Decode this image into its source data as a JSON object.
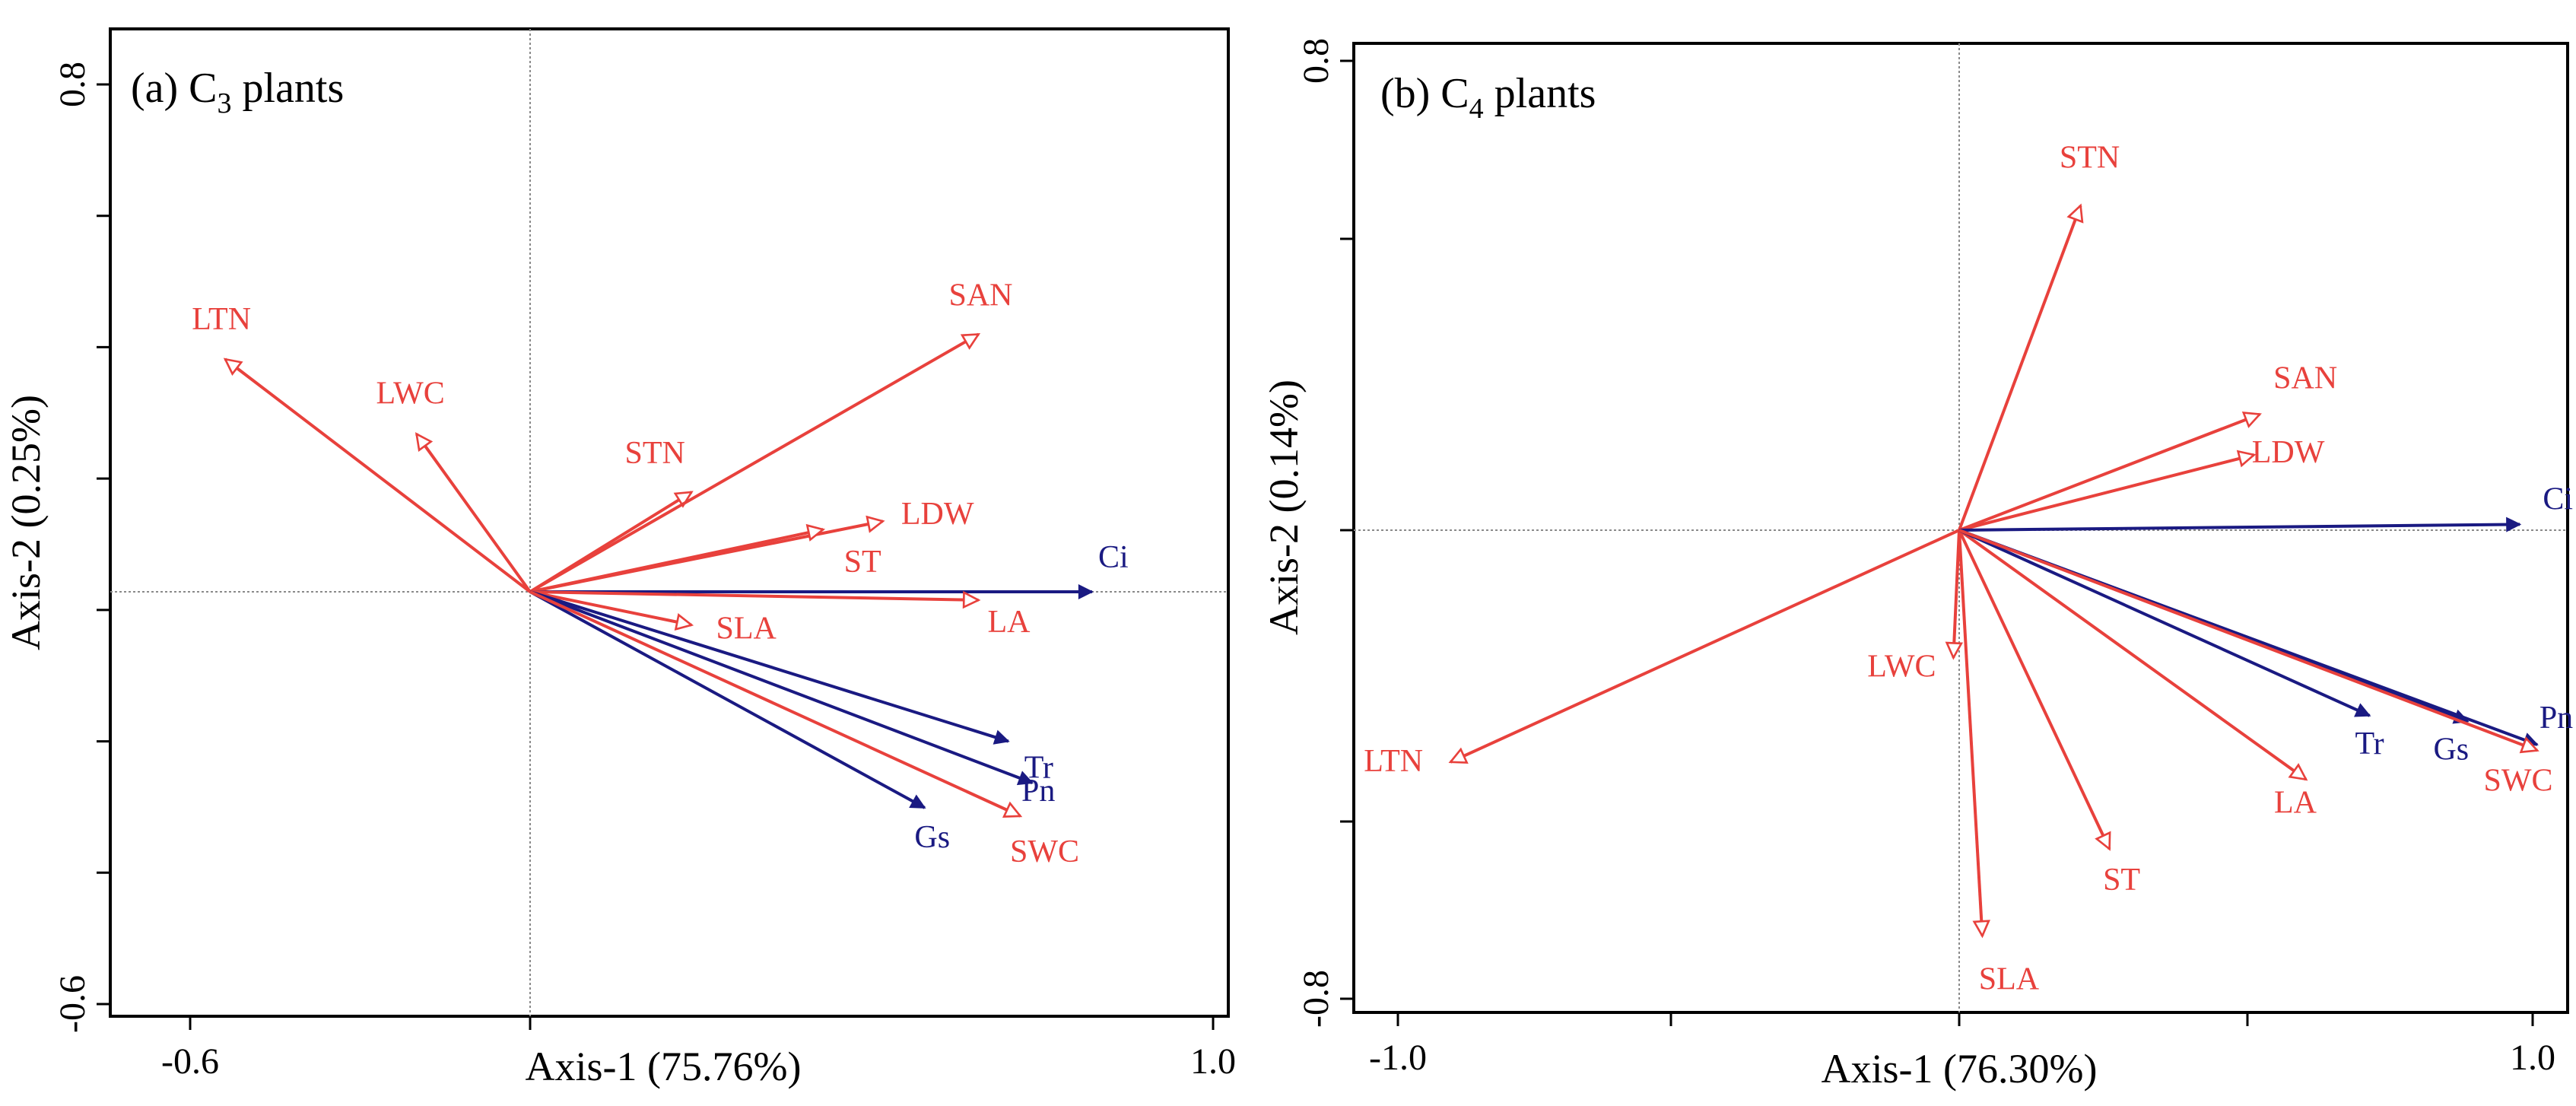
{
  "chart_data": [
    {
      "type": "biplot",
      "panel_label": "(a) C",
      "title_sub": "3",
      "title_suffix": " plants",
      "xlabel": "Axis-1 (75.76%)",
      "ylabel": "Axis-2 (0.25%)",
      "xlim": [
        -0.75,
        1.02
      ],
      "ylim": [
        -0.62,
        0.86
      ],
      "xticks": [
        -0.6,
        1.0
      ],
      "xtick_labels": [
        "-0.6",
        "1.0"
      ],
      "yticks": [
        -0.6,
        0.8
      ],
      "ytick_labels": [
        "-0.6",
        "0.8"
      ],
      "reference_lines": {
        "x": 0,
        "y": 0
      },
      "vectors": [
        {
          "name": "LTN",
          "x": -0.51,
          "y": 0.56,
          "group": "red"
        },
        {
          "name": "LWC",
          "x": -0.19,
          "y": 0.38,
          "group": "red"
        },
        {
          "name": "STN",
          "x": 0.27,
          "y": 0.24,
          "group": "red"
        },
        {
          "name": "SAN",
          "x": 0.75,
          "y": 0.62,
          "group": "red"
        },
        {
          "name": "LDW",
          "x": 0.59,
          "y": 0.17,
          "group": "red"
        },
        {
          "name": "ST",
          "x": 0.49,
          "y": 0.15,
          "group": "red"
        },
        {
          "name": "Ci",
          "x": 0.94,
          "y": 0.0,
          "group": "blue"
        },
        {
          "name": "LA",
          "x": 0.75,
          "y": -0.02,
          "group": "red"
        },
        {
          "name": "SLA",
          "x": 0.27,
          "y": -0.08,
          "group": "red"
        },
        {
          "name": "Tr",
          "x": 0.8,
          "y": -0.36,
          "group": "blue"
        },
        {
          "name": "Pn",
          "x": 0.84,
          "y": -0.46,
          "group": "blue"
        },
        {
          "name": "Gs",
          "x": 0.66,
          "y": -0.52,
          "group": "blue"
        },
        {
          "name": "SWC",
          "x": 0.82,
          "y": -0.54,
          "group": "red"
        }
      ]
    },
    {
      "type": "biplot",
      "panel_label": "(b) C",
      "title_sub": "4",
      "title_suffix": " plants",
      "xlabel": "Axis-1 (76.30%)",
      "ylabel": "Axis-2 (0.14%)",
      "xlim": [
        -1.1,
        1.0
      ],
      "ylim": [
        -0.88,
        0.88
      ],
      "xticks": [
        -1.0,
        1.0
      ],
      "xtick_labels": [
        "-1.0",
        "1.0"
      ],
      "yticks": [
        -0.8,
        0.8
      ],
      "ytick_labels": [
        "-0.8",
        "0.8"
      ],
      "reference_lines": {
        "x": 0,
        "y": 0
      },
      "vectors": [
        {
          "name": "STN",
          "x": 0.21,
          "y": 0.56,
          "group": "red"
        },
        {
          "name": "SAN",
          "x": 0.52,
          "y": 0.2,
          "group": "red"
        },
        {
          "name": "LDW",
          "x": 0.51,
          "y": 0.13,
          "group": "red"
        },
        {
          "name": "Ci",
          "x": 0.97,
          "y": 0.01,
          "group": "blue"
        },
        {
          "name": "LTN",
          "x": -0.88,
          "y": -0.4,
          "group": "red"
        },
        {
          "name": "LWC",
          "x": -0.01,
          "y": -0.22,
          "group": "red"
        },
        {
          "name": "SLA",
          "x": 0.04,
          "y": -0.7,
          "group": "red"
        },
        {
          "name": "ST",
          "x": 0.26,
          "y": -0.55,
          "group": "red"
        },
        {
          "name": "LA",
          "x": 0.6,
          "y": -0.43,
          "group": "red"
        },
        {
          "name": "Tr",
          "x": 0.71,
          "y": -0.32,
          "group": "blue"
        },
        {
          "name": "Gs",
          "x": 0.88,
          "y": -0.33,
          "group": "blue"
        },
        {
          "name": "Pn",
          "x": 1.0,
          "y": -0.37,
          "group": "blue"
        },
        {
          "name": "SWC",
          "x": 1.0,
          "y": -0.38,
          "group": "red"
        }
      ]
    }
  ],
  "colors": {
    "red": "#e8413c",
    "blue": "#1a1a82",
    "axis": "#000000",
    "reference": "#8a8a8a"
  }
}
